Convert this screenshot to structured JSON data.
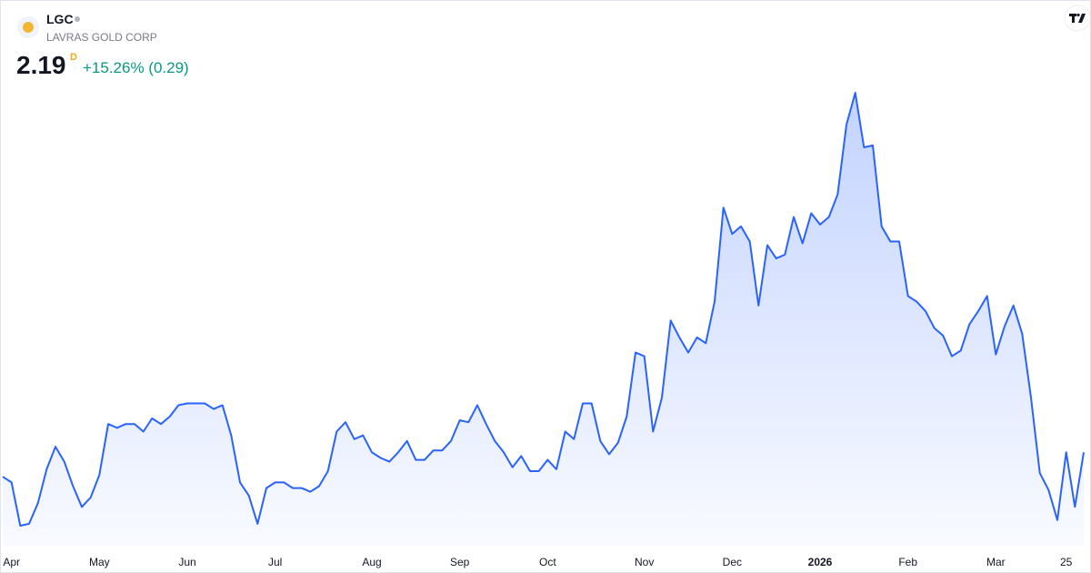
{
  "header": {
    "symbol": "LGC",
    "name": "LAVRAS GOLD CORP",
    "price": 2.19,
    "interval": "D",
    "change": "+15.26% (0.29)"
  },
  "chart_data": {
    "type": "area",
    "color": "#2962ff",
    "values": [
      2.06,
      2.03,
      1.8,
      1.81,
      1.92,
      2.1,
      2.22,
      2.14,
      2.01,
      1.9,
      1.95,
      2.07,
      2.34,
      2.32,
      2.34,
      2.34,
      2.3,
      2.37,
      2.34,
      2.38,
      2.44,
      2.45,
      2.45,
      2.45,
      2.42,
      2.44,
      2.28,
      2.03,
      1.96,
      1.81,
      2.0,
      2.03,
      2.03,
      2.0,
      2.0,
      1.98,
      2.01,
      2.09,
      2.3,
      2.35,
      2.26,
      2.28,
      2.19,
      2.16,
      2.14,
      2.19,
      2.25,
      2.15,
      2.15,
      2.2,
      2.2,
      2.25,
      2.36,
      2.35,
      2.44,
      2.34,
      2.25,
      2.19,
      2.11,
      2.17,
      2.09,
      2.09,
      2.15,
      2.1,
      2.3,
      2.26,
      2.45,
      2.45,
      2.25,
      2.18,
      2.24,
      2.38,
      2.72,
      2.7,
      2.3,
      2.48,
      2.89,
      2.8,
      2.72,
      2.8,
      2.77,
      2.99,
      3.49,
      3.35,
      3.39,
      3.31,
      2.97,
      3.29,
      3.22,
      3.24,
      3.44,
      3.3,
      3.46,
      3.4,
      3.44,
      3.56,
      3.93,
      4.1,
      3.81,
      3.82,
      3.39,
      3.31,
      3.31,
      3.02,
      2.99,
      2.94,
      2.85,
      2.81,
      2.7,
      2.73,
      2.87,
      2.94,
      3.02,
      2.71,
      2.86,
      2.97,
      2.82,
      2.48,
      2.08,
      1.99,
      1.83,
      2.19,
      1.9,
      2.19
    ],
    "xticks": [
      {
        "value": 1,
        "label": "Apr"
      },
      {
        "value": 11,
        "label": "May"
      },
      {
        "value": 21,
        "label": "Jun"
      },
      {
        "value": 31,
        "label": "Jul"
      },
      {
        "value": 42,
        "label": "Aug"
      },
      {
        "value": 52,
        "label": "Sep"
      },
      {
        "value": 62,
        "label": "Oct"
      },
      {
        "value": 73,
        "label": "Nov"
      },
      {
        "value": 83,
        "label": "Dec"
      },
      {
        "value": 93,
        "label": "2026"
      },
      {
        "value": 103,
        "label": "Feb"
      },
      {
        "value": 113,
        "label": "Mar"
      },
      {
        "value": 121,
        "label": "25"
      }
    ]
  }
}
